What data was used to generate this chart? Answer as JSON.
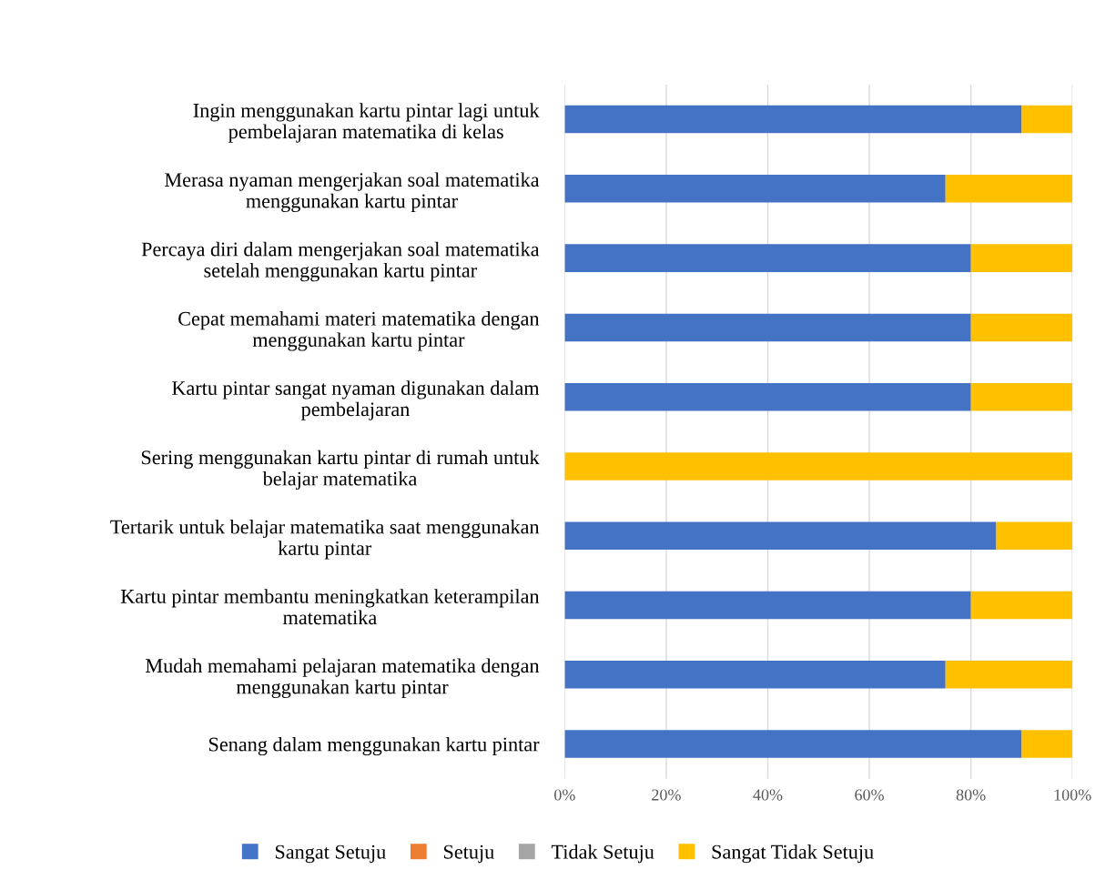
{
  "chart_data": {
    "type": "bar",
    "orientation": "horizontal",
    "stacked": true,
    "categories": [
      "Ingin menggunakan kartu pintar lagi untuk\npembelajaran matematika di kelas",
      "Merasa nyaman mengerjakan soal matematika\nmenggunakan kartu pintar",
      "Percaya diri dalam mengerjakan soal matematika\nsetelah menggunakan kartu pintar",
      "Cepat memahami materi matematika dengan\nmenggunakan kartu pintar",
      "Kartu pintar sangat nyaman digunakan dalam\npembelajaran",
      "Sering menggunakan kartu pintar di rumah untuk\nbelajar matematika",
      "Tertarik untuk belajar matematika saat menggunakan\nkartu pintar",
      "Kartu pintar membantu meningkatkan keterampilan\nmatematika",
      "Mudah memahami pelajaran matematika dengan\nmenggunakan kartu pintar",
      "Senang dalam menggunakan kartu pintar"
    ],
    "series": [
      {
        "name": "Sangat Setuju",
        "color": "#4472c4",
        "values": [
          90,
          75,
          80,
          80,
          80,
          0,
          85,
          80,
          75,
          90
        ]
      },
      {
        "name": "Setuju",
        "color": "#ed7d31",
        "values": [
          0,
          0,
          0,
          0,
          0,
          0,
          0,
          0,
          0,
          0
        ]
      },
      {
        "name": "Tidak Setuju",
        "color": "#a5a5a5",
        "values": [
          0,
          0,
          0,
          0,
          0,
          0,
          0,
          0,
          0,
          0
        ]
      },
      {
        "name": "Sangat Tidak Setuju",
        "color": "#ffc000",
        "values": [
          10,
          25,
          20,
          20,
          20,
          100,
          15,
          20,
          25,
          10
        ]
      }
    ],
    "xlim": [
      0,
      100
    ],
    "xticks": [
      {
        "value": 0,
        "label": "0%"
      },
      {
        "value": 20,
        "label": "20%"
      },
      {
        "value": 40,
        "label": "40%"
      },
      {
        "value": 60,
        "label": "60%"
      },
      {
        "value": 80,
        "label": "80%"
      },
      {
        "value": 100,
        "label": "100%"
      }
    ],
    "grid": "x",
    "legend": "bottom"
  }
}
